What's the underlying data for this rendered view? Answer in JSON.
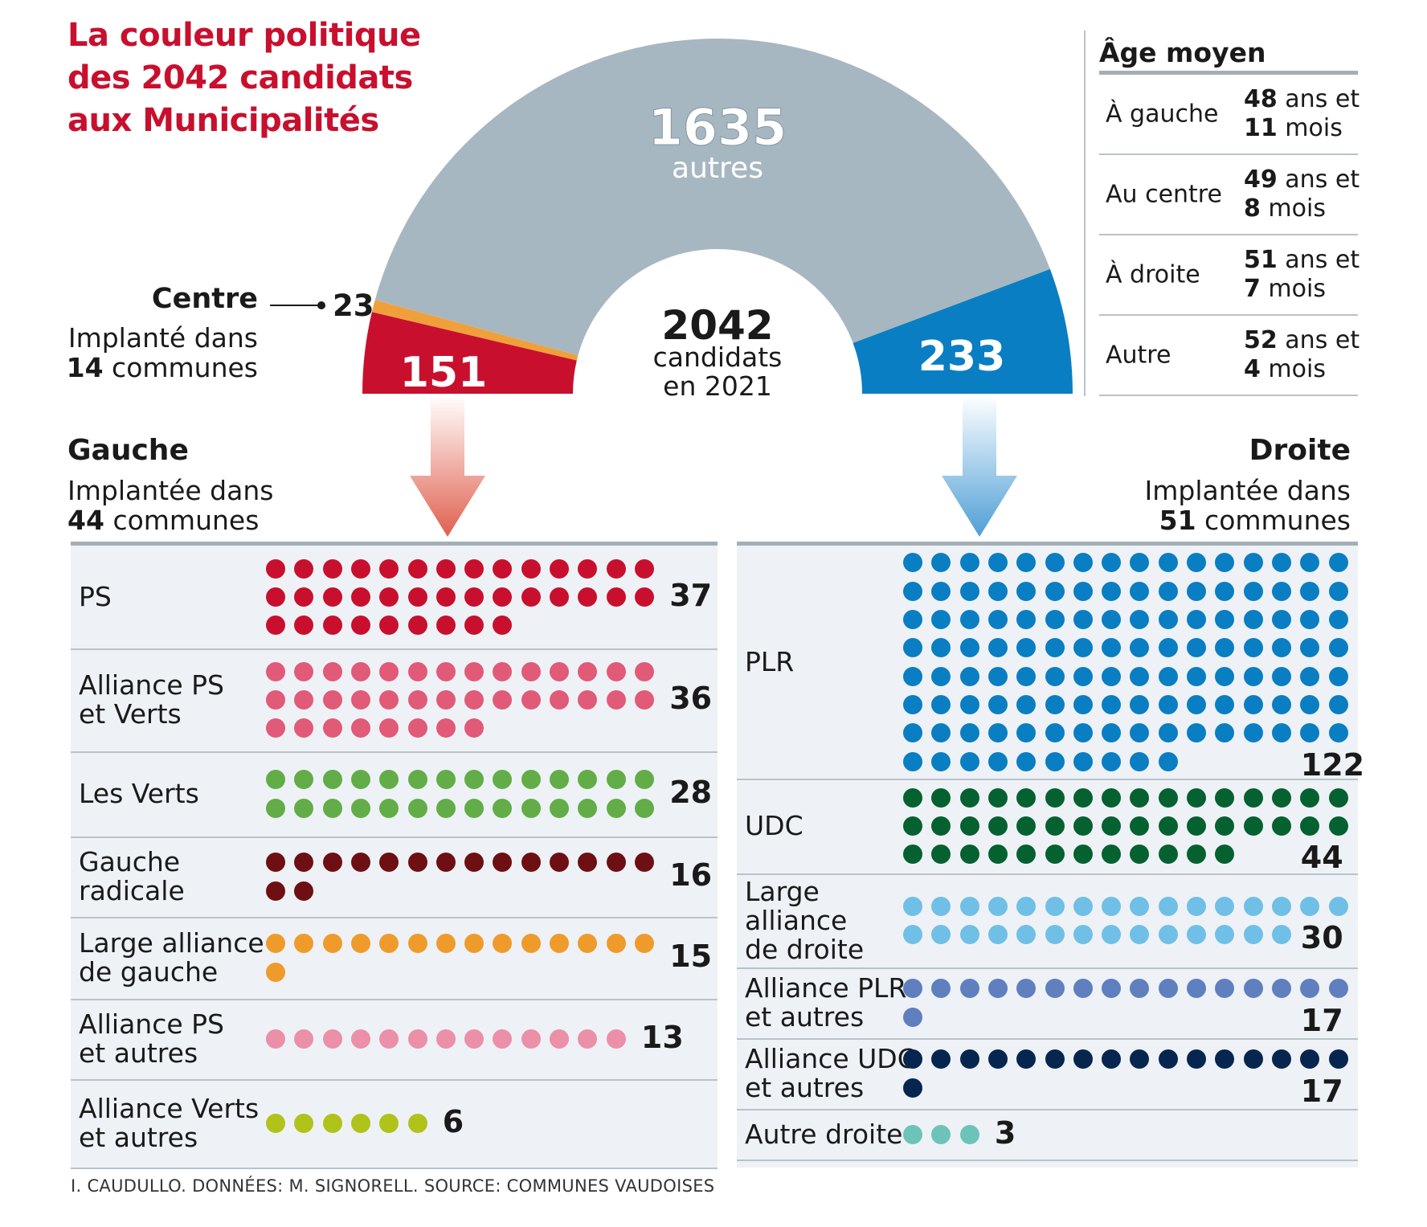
{
  "title": "La couleur politique des 2042 candidats aux Municipalités",
  "colors": {
    "title": "#c8102e",
    "autres": "#a7b7c1",
    "gauche": "#c8102e",
    "centre": "#f0a03a",
    "droite": "#0a7ec2"
  },
  "chart_data": [
    {
      "type": "pie",
      "shape": "half-donut",
      "total": {
        "value": "2042",
        "line1": "candidats",
        "line2": "en 2021"
      },
      "slices": [
        {
          "label": "Gauche",
          "value": 151,
          "color": "#c8102e"
        },
        {
          "label": "Centre",
          "value": 23,
          "color": "#f0a03a"
        },
        {
          "label": "autres",
          "value": 1635,
          "color": "#a7b7c1"
        },
        {
          "label": "Droite",
          "value": 233,
          "color": "#0a7ec2"
        }
      ],
      "labels": {
        "autres_value": "1635",
        "autres_text": "autres",
        "gauche_value": "151",
        "droite_value": "233",
        "centre_value": "23"
      }
    },
    {
      "type": "bar",
      "group": "Gauche",
      "unit_note": "one dot = one candidate",
      "categories": [
        "PS",
        "Alliance PS\net Verts",
        "Les Verts",
        "Gauche\nradicale",
        "Large alliance\nde gauche",
        "Alliance PS\net autres",
        "Alliance Verts\net autres"
      ],
      "values": [
        37,
        36,
        28,
        16,
        15,
        13,
        6
      ],
      "colors": [
        "#c8102e",
        "#e15a78",
        "#62ad47",
        "#6e0f14",
        "#ef9b2b",
        "#ec8fa8",
        "#afc31a"
      ]
    },
    {
      "type": "bar",
      "group": "Droite",
      "unit_note": "one dot = one candidate",
      "categories": [
        "PLR",
        "UDC",
        "Large\nalliance\nde droite",
        "Alliance PLR\net autres",
        "Alliance UDC\net autres",
        "Autre droite"
      ],
      "values": [
        122,
        44,
        30,
        17,
        17,
        3
      ],
      "colors": [
        "#0a7ec2",
        "#066130",
        "#70bfe6",
        "#5f7fbf",
        "#07264f",
        "#6cc4b8"
      ]
    }
  ],
  "centre": {
    "name": "Centre",
    "sub1": "Implanté dans",
    "communes": "14",
    "sub2": "communes"
  },
  "gauche": {
    "name": "Gauche",
    "sub1": "Implantée dans",
    "communes": "44",
    "sub2": "communes"
  },
  "droite": {
    "name": "Droite",
    "sub1": "Implantée dans",
    "communes": "51",
    "sub2": "communes"
  },
  "age": {
    "title": "Âge moyen",
    "rows": [
      {
        "label": "À gauche",
        "years": "48",
        "y_text": "ans et",
        "months": "11",
        "m_text": "mois"
      },
      {
        "label": "Au centre",
        "years": "49",
        "y_text": "ans et",
        "months": "8",
        "m_text": "mois"
      },
      {
        "label": "À droite",
        "years": "51",
        "y_text": "ans et",
        "months": "7",
        "m_text": "mois"
      },
      {
        "label": "Autre",
        "years": "52",
        "y_text": "ans et",
        "months": "4",
        "m_text": "mois"
      }
    ]
  },
  "source": "I. CAUDULLO. DONNÉES: M. SIGNORELL. SOURCE: COMMUNES VAUDOISES"
}
